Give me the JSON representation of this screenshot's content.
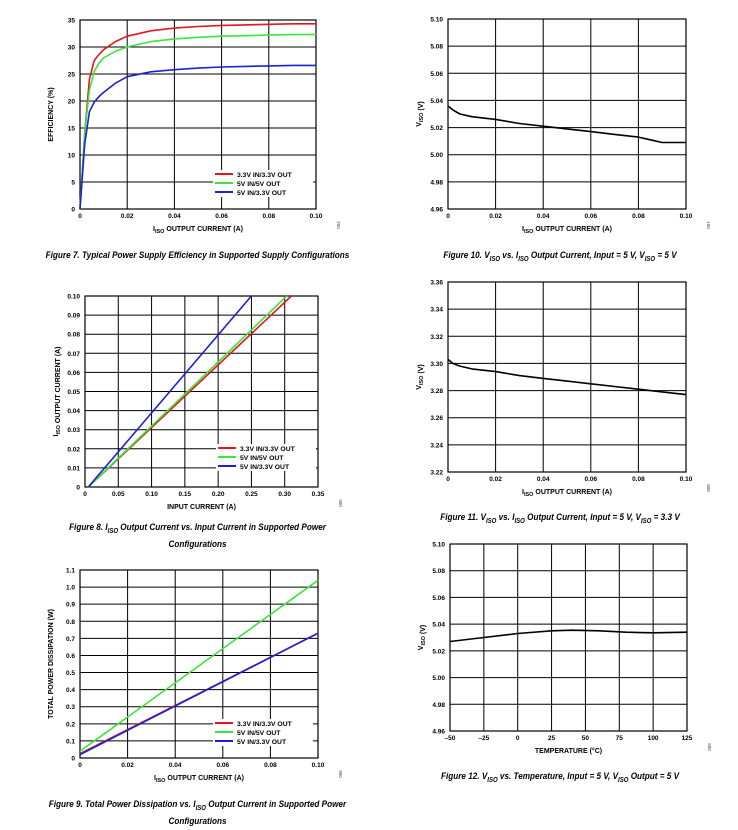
{
  "colors": {
    "red": "#e8141c",
    "green": "#3ae63a",
    "blue": "#1a22d8",
    "black": "#000000"
  },
  "chart_data": [
    {
      "id": "fig7",
      "type": "line",
      "xlabel_main": "I",
      "xlabel_sub": "ISO",
      "xlabel_rest": " OUTPUT CURRENT (A)",
      "ylabel": "EFFICIENCY (%)",
      "xlim": [
        0,
        0.1
      ],
      "ylim": [
        0,
        35
      ],
      "xticks": [
        "0",
        "0.02",
        "0.04",
        "0.06",
        "0.08",
        "0.10"
      ],
      "yticks": [
        "0",
        "5",
        "10",
        "15",
        "20",
        "25",
        "30",
        "35"
      ],
      "legend_position": "bottom-right",
      "series": [
        {
          "name": "3.3V IN/3.3V OUT",
          "color": "red",
          "x": [
            0,
            0.002,
            0.004,
            0.006,
            0.008,
            0.01,
            0.015,
            0.02,
            0.03,
            0.04,
            0.05,
            0.06,
            0.07,
            0.08,
            0.09,
            0.1
          ],
          "y": [
            0,
            14,
            24,
            27.5,
            28.6,
            29.5,
            31,
            32,
            33,
            33.5,
            33.8,
            34,
            34.1,
            34.2,
            34.3,
            34.3
          ]
        },
        {
          "name": "5V IN/5V OUT",
          "color": "green",
          "x": [
            0,
            0.002,
            0.004,
            0.006,
            0.008,
            0.01,
            0.015,
            0.02,
            0.03,
            0.04,
            0.05,
            0.06,
            0.07,
            0.08,
            0.09,
            0.1
          ],
          "y": [
            0,
            14,
            22,
            25.5,
            27,
            28,
            29.2,
            30,
            31,
            31.5,
            31.8,
            32,
            32.1,
            32.2,
            32.3,
            32.3
          ]
        },
        {
          "name": "5V IN/3.3V OUT",
          "color": "blue",
          "x": [
            0,
            0.002,
            0.004,
            0.006,
            0.008,
            0.01,
            0.015,
            0.02,
            0.03,
            0.04,
            0.05,
            0.06,
            0.07,
            0.08,
            0.09,
            0.1
          ],
          "y": [
            0,
            12,
            18,
            19.8,
            20.8,
            21.6,
            23.3,
            24.5,
            25.4,
            25.8,
            26.1,
            26.3,
            26.4,
            26.5,
            26.6,
            26.6
          ]
        }
      ],
      "figure_code": "004",
      "caption": "Figure 7. Typical Power Supply Efficiency in Supported Supply Configurations"
    },
    {
      "id": "fig8",
      "type": "line",
      "xlabel_main": "INPUT CURRENT (A)",
      "xlabel_sub": "",
      "xlabel_rest": "",
      "ylabel": "I<sub>ISO</sub> OUTPUT CURRENT (A)",
      "xlim": [
        0,
        0.35
      ],
      "ylim": [
        0,
        0.1
      ],
      "xticks": [
        "0",
        "0.05",
        "0.10",
        "0.15",
        "0.20",
        "0.25",
        "0.30",
        "0.35"
      ],
      "yticks": [
        "0",
        "0.01",
        "0.02",
        "0.03",
        "0.04",
        "0.05",
        "0.06",
        "0.07",
        "0.08",
        "0.09",
        "0.10"
      ],
      "legend_position": "bottom-right",
      "series": [
        {
          "name": "3.3V IN/3.3V OUT",
          "color": "red",
          "x": [
            0.005,
            0.31
          ],
          "y": [
            0,
            0.1
          ]
        },
        {
          "name": "5V IN/5V OUT",
          "color": "green",
          "x": [
            0.005,
            0.303
          ],
          "y": [
            0,
            0.1
          ]
        },
        {
          "name": "5V IN/3.3V OUT",
          "color": "blue",
          "x": [
            0.005,
            0.25
          ],
          "y": [
            0,
            0.1
          ]
        }
      ],
      "figure_code": "005",
      "caption": "Figure 8. I<sub>ISO</sub> Output Current vs. Input Current in Supported Power Configurations"
    },
    {
      "id": "fig9",
      "type": "line",
      "xlabel_main": "I",
      "xlabel_sub": "ISO",
      "xlabel_rest": " OUTPUT CURRENT (A)",
      "ylabel": "TOTAL POWER DISSIPATION (W)",
      "xlim": [
        0,
        0.1
      ],
      "ylim": [
        0,
        1.1
      ],
      "xticks": [
        "0",
        "0.02",
        "0.04",
        "0.06",
        "0.08",
        "0.10"
      ],
      "yticks": [
        "0",
        "0.1",
        "0.2",
        "0.3",
        "0.4",
        "0.5",
        "0.6",
        "0.7",
        "0.8",
        "0.9",
        "1.0",
        "1.1"
      ],
      "legend_position": "bottom-right",
      "series": [
        {
          "name": "3.3V IN/3.3V OUT",
          "color": "red",
          "x": [
            0,
            0.1
          ],
          "y": [
            0.025,
            0.73
          ]
        },
        {
          "name": "5V IN/5V OUT",
          "color": "green",
          "x": [
            0,
            0.1
          ],
          "y": [
            0.04,
            1.04
          ]
        },
        {
          "name": "5V IN/3.3V OUT",
          "color": "blue",
          "x": [
            0,
            0.1
          ],
          "y": [
            0.02,
            0.73
          ]
        }
      ],
      "figure_code": "006",
      "caption": "Figure 9. Total Power Dissipation vs. I<sub>ISO</sub> Output Current in Supported Power Configurations"
    },
    {
      "id": "fig10",
      "type": "line",
      "xlabel_main": "I",
      "xlabel_sub": "ISO",
      "xlabel_rest": " OUTPUT CURRENT (A)",
      "ylabel": "V<sub>ISO</sub> (V)",
      "xlim": [
        0,
        0.1
      ],
      "ylim": [
        4.96,
        5.1
      ],
      "xticks": [
        "0",
        "0.02",
        "0.04",
        "0.06",
        "0.08",
        "0.10"
      ],
      "yticks": [
        "4.96",
        "4.98",
        "5.00",
        "5.02",
        "5.04",
        "5.06",
        "5.08",
        "5.10"
      ],
      "series": [
        {
          "name": "",
          "color": "black",
          "x": [
            0,
            0.002,
            0.005,
            0.01,
            0.02,
            0.03,
            0.04,
            0.05,
            0.06,
            0.07,
            0.08,
            0.085,
            0.09,
            0.1
          ],
          "y": [
            5.036,
            5.033,
            5.03,
            5.028,
            5.026,
            5.023,
            5.021,
            5.019,
            5.017,
            5.015,
            5.013,
            5.011,
            5.009,
            5.009
          ]
        }
      ],
      "figure_code": "007",
      "caption": "Figure 10. V<sub>ISO</sub> vs. I<sub>ISO</sub> Output Current, Input = 5 V, V<sub>ISO</sub> = 5 V"
    },
    {
      "id": "fig11",
      "type": "line",
      "xlabel_main": "I",
      "xlabel_sub": "ISO",
      "xlabel_rest": " OUTPUT CURRENT (A)",
      "ylabel": "V<sub>ISO</sub> (V)",
      "xlim": [
        0,
        0.1
      ],
      "ylim": [
        3.22,
        3.36
      ],
      "xticks": [
        "0",
        "0.02",
        "0.04",
        "0.06",
        "0.08",
        "0.10"
      ],
      "yticks": [
        "3.22",
        "3.24",
        "3.26",
        "3.28",
        "3.30",
        "3.32",
        "3.34",
        "3.36"
      ],
      "series": [
        {
          "name": "",
          "color": "black",
          "x": [
            0,
            0.002,
            0.005,
            0.01,
            0.02,
            0.03,
            0.04,
            0.05,
            0.06,
            0.07,
            0.08,
            0.09,
            0.1
          ],
          "y": [
            3.303,
            3.3,
            3.298,
            3.296,
            3.294,
            3.291,
            3.289,
            3.287,
            3.285,
            3.283,
            3.281,
            3.279,
            3.277
          ]
        }
      ],
      "figure_code": "008",
      "caption": "Figure 11. V<sub>ISO</sub> vs. I<sub>ISO</sub> Output Current, Input = 5 V, V<sub>ISO</sub> = 3.3 V"
    },
    {
      "id": "fig12",
      "type": "line",
      "xlabel_main": "TEMPERATURE (°C)",
      "xlabel_sub": "",
      "xlabel_rest": "",
      "ylabel": "V<sub>ISO</sub> (V)",
      "xlim": [
        -50,
        125
      ],
      "ylim": [
        4.96,
        5.1
      ],
      "xticks": [
        "–50",
        "–25",
        "0",
        "25",
        "50",
        "75",
        "100",
        "125"
      ],
      "yticks": [
        "4.96",
        "4.98",
        "5.00",
        "5.02",
        "5.04",
        "5.06",
        "5.08",
        "5.10"
      ],
      "series": [
        {
          "name": "",
          "color": "black",
          "x": [
            -50,
            -25,
            0,
            25,
            40,
            60,
            80,
            100,
            125
          ],
          "y": [
            5.027,
            5.03,
            5.033,
            5.035,
            5.0355,
            5.035,
            5.034,
            5.0335,
            5.034
          ]
        }
      ],
      "figure_code": "009",
      "caption": "Figure 12. V<sub>ISO</sub> vs. Temperature, Input = 5 V, V<sub>ISO</sub> Output = 5 V"
    }
  ]
}
